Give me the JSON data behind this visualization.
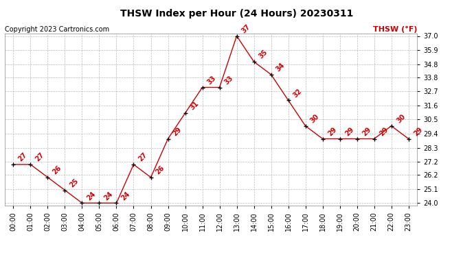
{
  "title": "THSW Index per Hour (24 Hours) 20230311",
  "copyright": "Copyright 2023 Cartronics.com",
  "legend_label": "THSW (°F)",
  "hours": [
    0,
    1,
    2,
    3,
    4,
    5,
    6,
    7,
    8,
    9,
    10,
    11,
    12,
    13,
    14,
    15,
    16,
    17,
    18,
    19,
    20,
    21,
    22,
    23
  ],
  "values": [
    27,
    27,
    26,
    25,
    24,
    24,
    24,
    27,
    26,
    29,
    31,
    33,
    33,
    37,
    35,
    34,
    32,
    30,
    29,
    29,
    29,
    29,
    30,
    29
  ],
  "x_labels": [
    "00:00",
    "01:00",
    "02:00",
    "03:00",
    "04:00",
    "05:00",
    "06:00",
    "07:00",
    "08:00",
    "09:00",
    "10:00",
    "11:00",
    "12:00",
    "13:00",
    "14:00",
    "15:00",
    "16:00",
    "17:00",
    "18:00",
    "19:00",
    "20:00",
    "21:00",
    "22:00",
    "23:00"
  ],
  "y_ticks": [
    24.0,
    25.1,
    26.2,
    27.2,
    28.3,
    29.4,
    30.5,
    31.6,
    32.7,
    33.8,
    34.8,
    35.9,
    37.0
  ],
  "ylim": [
    23.8,
    37.2
  ],
  "line_color": "#cc0000",
  "marker_color": "#000000",
  "label_color": "#cc0000",
  "title_color": "#000000",
  "copyright_color": "#000000",
  "bg_color": "#ffffff",
  "grid_color": "#bbbbbb",
  "title_fontsize": 10,
  "copyright_fontsize": 7,
  "legend_fontsize": 8,
  "label_fontsize": 7,
  "tick_fontsize": 7
}
